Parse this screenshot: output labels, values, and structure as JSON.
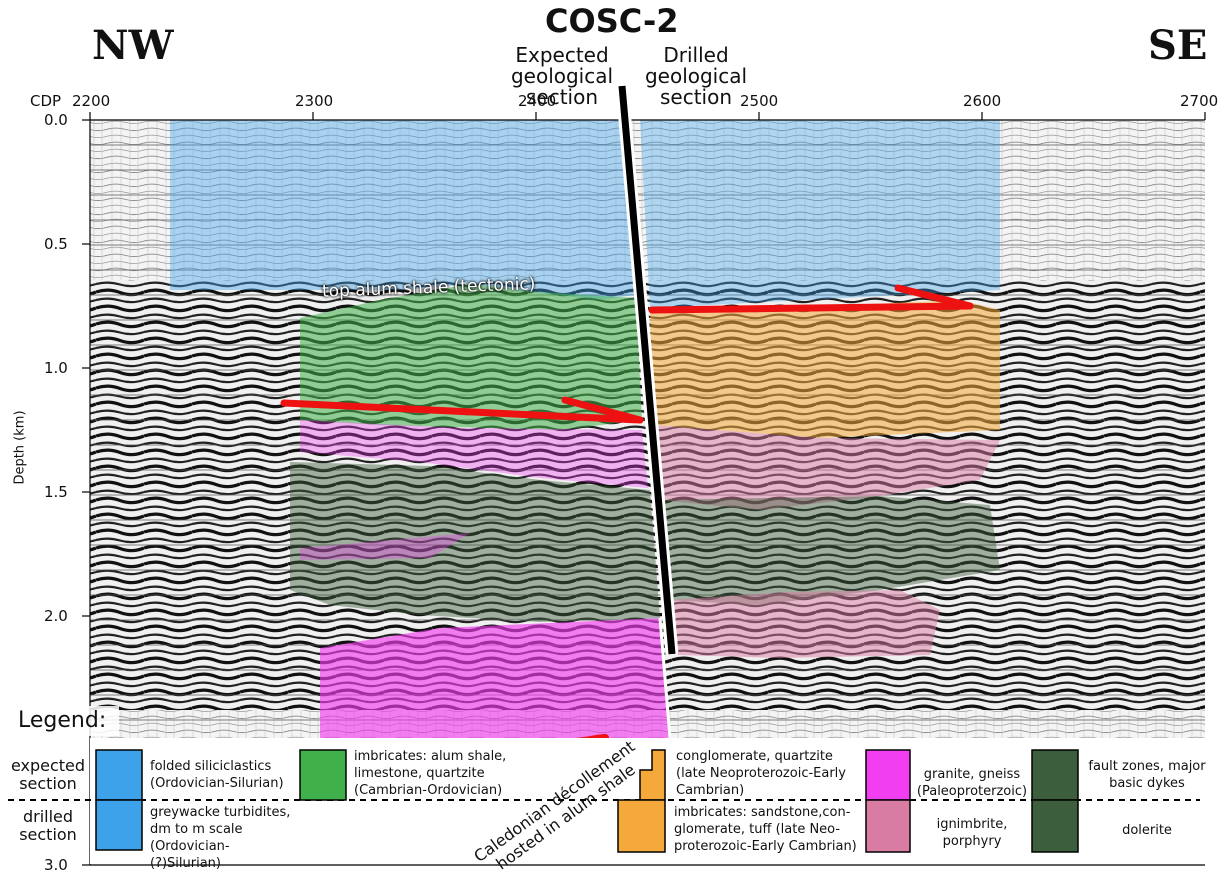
{
  "header": {
    "title": "COSC-2",
    "left_dir": "NW",
    "right_dir": "SE",
    "expected_caption": "Expected geological section",
    "drilled_caption": "Drilled geological section"
  },
  "axes": {
    "x_prefix": "CDP",
    "x_ticks": [
      "2200",
      "2300",
      "2400",
      "2500",
      "2600",
      "2700"
    ],
    "y_ticks": [
      "0.0",
      "0.5",
      "1.0",
      "1.5",
      "2.0",
      "3.0"
    ],
    "y_label": "Depth (km)"
  },
  "annotations": {
    "alum_shale": "top alum shale (tectonic)",
    "decollement_line1": "Caledonian décollement",
    "decollement_line2": "hosted in alum shale"
  },
  "legend": {
    "title": "Legend:",
    "row_expected": "expected section",
    "row_drilled": "drilled section",
    "items": [
      {
        "key": "folded-siliciclastics",
        "text": "folded siliciclastics (Ordovician-Silurian)",
        "color": "#3ea2ea"
      },
      {
        "key": "greywacke-turbidites",
        "text": "greywacke turbidites, dm to m scale (Ordovician-(?)Silurian)",
        "color": "#3ea2ea"
      },
      {
        "key": "imbricates-alum",
        "text": "imbricates: alum shale, limestone, quartzite (Cambrian-Ordovician)",
        "color": "#3fb04a"
      },
      {
        "key": "conglomerate-quartzite",
        "text": "conglomerate, quartzite (late Neoproterozoic-Early Cambrian)",
        "color": "#f6a93b"
      },
      {
        "key": "imbricates-sandstone",
        "text": "imbricates: sandstone,con- glomerate, tuff (late Neo- proterozoic-Early Cambrian)",
        "color": "#f6a93b"
      },
      {
        "key": "granite-gneiss",
        "text": "granite, gneiss (Paleoproterzoic)",
        "color": "#f03ef0"
      },
      {
        "key": "ignimbrite",
        "text": "ignimbrite, porphyry",
        "color": "#d97ca4"
      },
      {
        "key": "fault-zones",
        "text": "fault zones, major basic dykes",
        "color": "#3c5e3c"
      },
      {
        "key": "dolerite",
        "text": "dolerite",
        "color": "#3c5e3c"
      }
    ]
  },
  "colors": {
    "siliciclastics": "#3ea2ea",
    "imbricates": "#3fb04a",
    "conglomerate": "#f6a93b",
    "granite": "#f03ef0",
    "ignimbrite": "#d97ca4",
    "dolerite": "#3c5e3c",
    "thrust_arrow": "#ee1111",
    "borehole": "#000000"
  }
}
